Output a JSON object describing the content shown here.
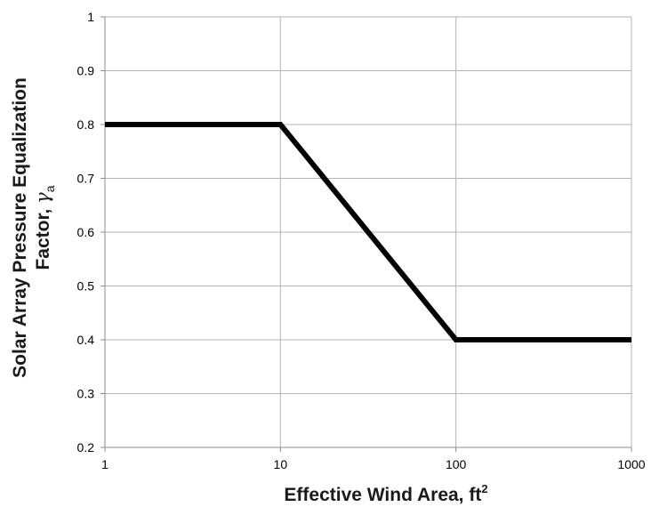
{
  "chart_data": {
    "type": "line",
    "xscale": "log",
    "xlim": [
      1,
      1000
    ],
    "ylim": [
      0.2,
      1
    ],
    "xticks": [
      1,
      10,
      100,
      1000
    ],
    "xtick_labels": [
      "1",
      "10",
      "100",
      "1000"
    ],
    "yticks": [
      0.2,
      0.3,
      0.4,
      0.5,
      0.6,
      0.7,
      0.8,
      0.9,
      1
    ],
    "ytick_labels": [
      "0.2",
      "0.3",
      "0.4",
      "0.5",
      "0.6",
      "0.7",
      "0.8",
      "0.9",
      "1"
    ],
    "grid": true,
    "xlabel": "Effective Wind Area, ft",
    "xlabel_superscript": "2",
    "ylabel_line1": "Solar Array Pressure Equalization",
    "ylabel_line2": "Factor, ",
    "ylabel_symbol": "γ",
    "ylabel_subscript": "a",
    "series": [
      {
        "x": [
          1,
          10,
          100,
          1000
        ],
        "y": [
          0.8,
          0.8,
          0.4,
          0.4
        ],
        "color": "#000000"
      }
    ],
    "colors": {
      "grid": "#b3b3b3",
      "axis": "#8c8c8c",
      "line": "#000000",
      "text": "#000000"
    }
  }
}
